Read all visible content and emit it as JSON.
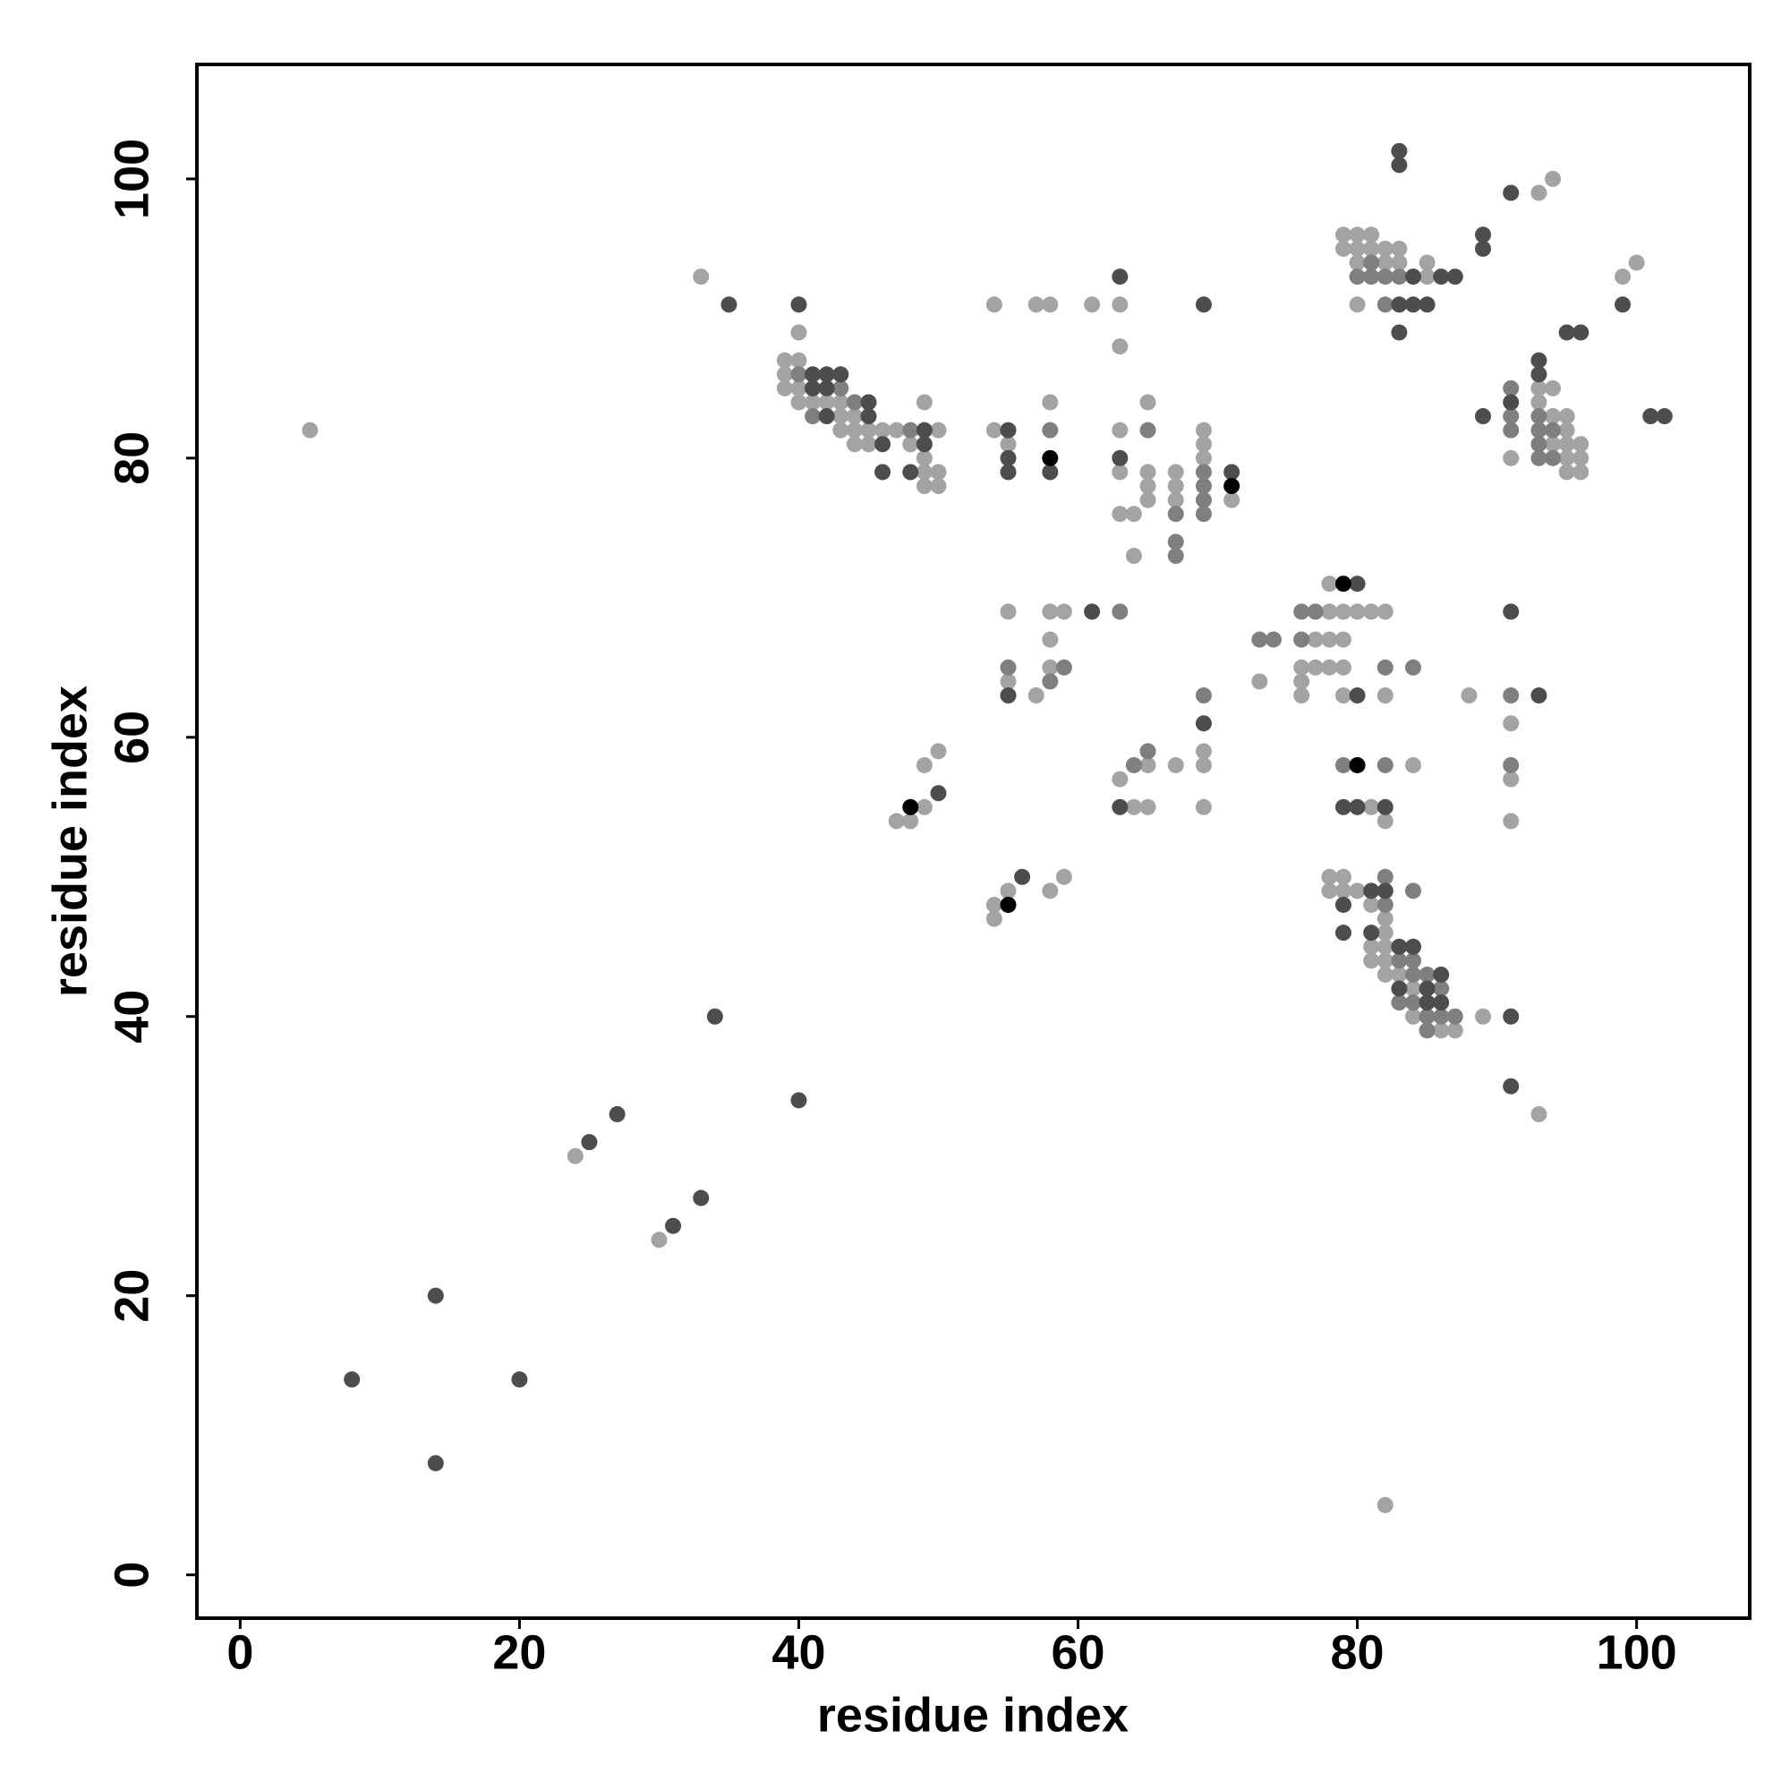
{
  "chart_data": {
    "type": "scatter",
    "x_label": "residue index",
    "y_label": "residue index",
    "xlim": [
      -3.1,
      108.1
    ],
    "ylim": [
      -3.1,
      108.2
    ],
    "xticks": [
      0,
      20,
      40,
      60,
      80,
      100
    ],
    "yticks": [
      0,
      20,
      40,
      60,
      80,
      100
    ],
    "series": [
      {
        "color": "#a3a3a3",
        "x": [
          5,
          24,
          30,
          33,
          40,
          39,
          40,
          39,
          39,
          40,
          40,
          41,
          42,
          43,
          43,
          44,
          43,
          44,
          45,
          46,
          47,
          50,
          44,
          45,
          48,
          49,
          49,
          50,
          49,
          49,
          50,
          54,
          57,
          58,
          61,
          63,
          63,
          54,
          55,
          58,
          63,
          63,
          63,
          64,
          64,
          65,
          65,
          65,
          65,
          67,
          67,
          67,
          69,
          69,
          69,
          71,
          55,
          58,
          59,
          58,
          55,
          57,
          58,
          69,
          69,
          67,
          65,
          63,
          64,
          65,
          69,
          47,
          48,
          49,
          49,
          50,
          54,
          54,
          55,
          58,
          59,
          73,
          78,
          79,
          80,
          81,
          82,
          78,
          77,
          78,
          79,
          76,
          77,
          78,
          79,
          76,
          76,
          79,
          82,
          88,
          91,
          91,
          91,
          84,
          81,
          82,
          78,
          79,
          78,
          79,
          80,
          81,
          82,
          82,
          81,
          82,
          81,
          82,
          82,
          83,
          84,
          84,
          86,
          87,
          89,
          93,
          82,
          79,
          80,
          81,
          79,
          80,
          81,
          82,
          83,
          80,
          82,
          83,
          85,
          85,
          80,
          93,
          94,
          99,
          100,
          91,
          93,
          93,
          94,
          94,
          94,
          95,
          95,
          95,
          95,
          95,
          96,
          96,
          96
        ],
        "y": [
          82,
          30,
          24,
          93,
          89,
          87,
          87,
          86,
          85,
          85,
          84,
          84,
          84,
          84,
          83,
          83,
          82,
          82,
          82,
          82,
          82,
          82,
          81,
          81,
          81,
          84,
          79,
          79,
          80,
          78,
          78,
          91,
          91,
          91,
          91,
          91,
          88,
          82,
          81,
          84,
          82,
          79,
          76,
          76,
          73,
          84,
          79,
          78,
          77,
          79,
          78,
          77,
          82,
          81,
          80,
          77,
          69,
          69,
          69,
          67,
          64,
          63,
          65,
          59,
          58,
          58,
          58,
          57,
          55,
          55,
          55,
          54,
          54,
          55,
          58,
          59,
          48,
          47,
          49,
          49,
          50,
          64,
          69,
          69,
          69,
          69,
          69,
          71,
          67,
          67,
          67,
          65,
          65,
          65,
          65,
          64,
          63,
          63,
          63,
          63,
          61,
          57,
          54,
          58,
          55,
          54,
          50,
          50,
          49,
          49,
          49,
          48,
          47,
          46,
          45,
          45,
          44,
          44,
          43,
          43,
          42,
          40,
          39,
          39,
          40,
          33,
          5,
          96,
          96,
          96,
          95,
          95,
          95,
          95,
          95,
          94,
          94,
          94,
          93,
          94,
          91,
          99,
          100,
          93,
          94,
          80,
          85,
          84,
          85,
          83,
          81,
          83,
          82,
          81,
          80,
          79,
          81,
          80,
          79
        ]
      },
      {
        "color": "#7f7f7f",
        "x": [
          40,
          43,
          44,
          41,
          48,
          58,
          65,
          67,
          67,
          67,
          69,
          69,
          69,
          69,
          63,
          55,
          59,
          58,
          69,
          65,
          64,
          73,
          74,
          76,
          77,
          76,
          82,
          84,
          91,
          91,
          79,
          82,
          82,
          82,
          84,
          83,
          84,
          84,
          85,
          86,
          83,
          84,
          85,
          86,
          87,
          85,
          81,
          80,
          81,
          82,
          83,
          82,
          91,
          91,
          91,
          93,
          93,
          93,
          93,
          94,
          94
        ],
        "y": [
          86,
          85,
          84,
          83,
          82,
          82,
          82,
          76,
          74,
          73,
          79,
          78,
          77,
          76,
          69,
          65,
          65,
          64,
          63,
          59,
          58,
          67,
          67,
          69,
          69,
          67,
          65,
          65,
          63,
          58,
          58,
          58,
          50,
          48,
          49,
          44,
          44,
          43,
          43,
          42,
          41,
          41,
          40,
          40,
          40,
          39,
          94,
          93,
          93,
          93,
          93,
          91,
          85,
          83,
          82,
          83,
          82,
          81,
          80,
          82,
          80
        ]
      },
      {
        "color": "#4d4d4d",
        "x": [
          8,
          14,
          14,
          20,
          25,
          27,
          31,
          33,
          34,
          40,
          35,
          40,
          41,
          42,
          43,
          41,
          42,
          45,
          42,
          45,
          49,
          46,
          49,
          46,
          48,
          63,
          69,
          55,
          55,
          55,
          58,
          63,
          71,
          61,
          55,
          69,
          63,
          50,
          56,
          80,
          80,
          93,
          91,
          79,
          80,
          82,
          81,
          82,
          79,
          79,
          81,
          83,
          84,
          86,
          83,
          85,
          85,
          86,
          91,
          91,
          84,
          86,
          87,
          83,
          84,
          85,
          83,
          83,
          83,
          89,
          89,
          91,
          99,
          95,
          96,
          89,
          91,
          93,
          93,
          101,
          102
        ],
        "y": [
          14,
          20,
          8,
          14,
          31,
          33,
          25,
          27,
          40,
          34,
          91,
          91,
          86,
          86,
          86,
          85,
          85,
          84,
          83,
          83,
          82,
          81,
          81,
          79,
          79,
          93,
          91,
          82,
          80,
          79,
          79,
          80,
          79,
          69,
          63,
          61,
          55,
          56,
          50,
          71,
          63,
          63,
          69,
          55,
          55,
          55,
          49,
          49,
          48,
          46,
          46,
          45,
          45,
          43,
          42,
          42,
          41,
          41,
          40,
          35,
          93,
          93,
          93,
          91,
          91,
          91,
          89,
          102,
          101,
          96,
          95,
          99,
          91,
          89,
          89,
          83,
          84,
          87,
          86,
          83,
          83
        ]
      },
      {
        "color": "#000000",
        "x": [
          58,
          71,
          48,
          55,
          79,
          80
        ],
        "y": [
          80,
          78,
          55,
          48,
          71,
          58
        ]
      }
    ]
  }
}
